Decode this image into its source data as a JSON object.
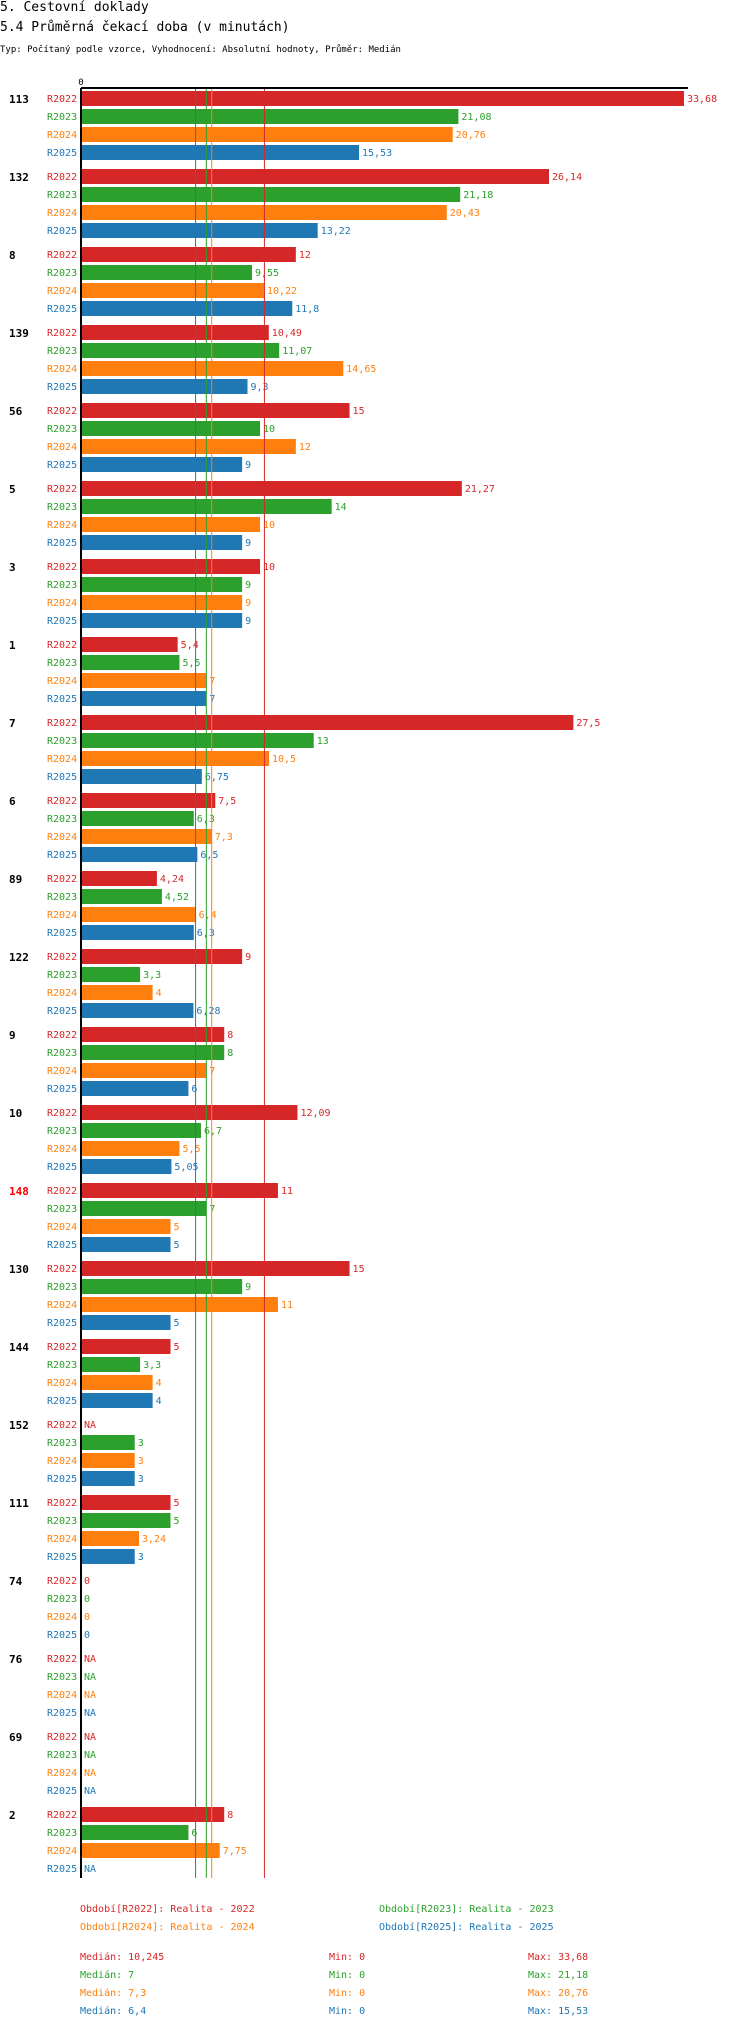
{
  "header": {
    "title": "5. Cestovní doklady",
    "subtitle": "5.4 Průměrná čekací doba (v minutách)",
    "type_line": "Typ: Počítaný podle vzorce, Vyhodnocení: Absolutní hodnoty, Průměr: Medián"
  },
  "colors": {
    "R2022": "#d62728",
    "R2023": "#2ca02c",
    "R2024": "#ff7f0e",
    "R2025": "#1f77b4",
    "highlight_category": "#ff0000"
  },
  "chart_data": {
    "type": "bar",
    "orientation": "horizontal",
    "x_axis_tick": "0",
    "xlim": [
      0,
      33.68
    ],
    "series_names": [
      "R2022",
      "R2023",
      "R2024",
      "R2025"
    ],
    "categories": [
      {
        "label": "113",
        "highlight": false,
        "values": [
          33.68,
          21.08,
          20.76,
          15.53
        ],
        "labels": [
          "33,68",
          "21,08",
          "20,76",
          "15,53"
        ]
      },
      {
        "label": "132",
        "highlight": false,
        "values": [
          26.14,
          21.18,
          20.43,
          13.22
        ],
        "labels": [
          "26,14",
          "21,18",
          "20,43",
          "13,22"
        ]
      },
      {
        "label": "8",
        "highlight": false,
        "values": [
          12,
          9.55,
          10.22,
          11.8
        ],
        "labels": [
          "12",
          "9,55",
          "10,22",
          "11,8"
        ]
      },
      {
        "label": "139",
        "highlight": false,
        "values": [
          10.49,
          11.07,
          14.65,
          9.3
        ],
        "labels": [
          "10,49",
          "11,07",
          "14,65",
          "9,3"
        ]
      },
      {
        "label": "56",
        "highlight": false,
        "values": [
          15,
          10,
          12,
          9
        ],
        "labels": [
          "15",
          "10",
          "12",
          "9"
        ]
      },
      {
        "label": "5",
        "highlight": false,
        "values": [
          21.27,
          14,
          10,
          9
        ],
        "labels": [
          "21,27",
          "14",
          "10",
          "9"
        ]
      },
      {
        "label": "3",
        "highlight": false,
        "values": [
          10,
          9,
          9,
          9
        ],
        "labels": [
          "10",
          "9",
          "9",
          "9"
        ]
      },
      {
        "label": "1",
        "highlight": false,
        "values": [
          5.4,
          5.5,
          7,
          7
        ],
        "labels": [
          "5,4",
          "5,5",
          "7",
          "7"
        ]
      },
      {
        "label": "7",
        "highlight": false,
        "values": [
          27.5,
          13,
          10.5,
          6.75
        ],
        "labels": [
          "27,5",
          "13",
          "10,5",
          "6,75"
        ]
      },
      {
        "label": "6",
        "highlight": false,
        "values": [
          7.5,
          6.3,
          7.3,
          6.5
        ],
        "labels": [
          "7,5",
          "6,3",
          "7,3",
          "6,5"
        ]
      },
      {
        "label": "89",
        "highlight": false,
        "values": [
          4.24,
          4.52,
          6.4,
          6.3
        ],
        "labels": [
          "4,24",
          "4,52",
          "6,4",
          "6,3"
        ]
      },
      {
        "label": "122",
        "highlight": false,
        "values": [
          9,
          3.3,
          4,
          6.28
        ],
        "labels": [
          "9",
          "3,3",
          "4",
          "6,28"
        ]
      },
      {
        "label": "9",
        "highlight": false,
        "values": [
          8,
          8,
          7,
          6
        ],
        "labels": [
          "8",
          "8",
          "7",
          "6"
        ]
      },
      {
        "label": "10",
        "highlight": false,
        "values": [
          12.09,
          6.7,
          5.5,
          5.05
        ],
        "labels": [
          "12,09",
          "6,7",
          "5,5",
          "5,05"
        ]
      },
      {
        "label": "148",
        "highlight": true,
        "values": [
          11,
          7,
          5,
          5
        ],
        "labels": [
          "11",
          "7",
          "5",
          "5"
        ]
      },
      {
        "label": "130",
        "highlight": false,
        "values": [
          15,
          9,
          11,
          5
        ],
        "labels": [
          "15",
          "9",
          "11",
          "5"
        ]
      },
      {
        "label": "144",
        "highlight": false,
        "values": [
          5,
          3.3,
          4,
          4
        ],
        "labels": [
          "5",
          "3,3",
          "4",
          "4"
        ]
      },
      {
        "label": "152",
        "highlight": false,
        "values": [
          null,
          3,
          3,
          3
        ],
        "labels": [
          "NA",
          "3",
          "3",
          "3"
        ]
      },
      {
        "label": "111",
        "highlight": false,
        "values": [
          5,
          5,
          3.24,
          3
        ],
        "labels": [
          "5",
          "5",
          "3,24",
          "3"
        ]
      },
      {
        "label": "74",
        "highlight": false,
        "values": [
          0,
          0,
          0,
          0
        ],
        "labels": [
          "0",
          "0",
          "0",
          "0"
        ]
      },
      {
        "label": "76",
        "highlight": false,
        "values": [
          null,
          null,
          null,
          null
        ],
        "labels": [
          "NA",
          "NA",
          "NA",
          "NA"
        ]
      },
      {
        "label": "69",
        "highlight": false,
        "values": [
          null,
          null,
          null,
          null
        ],
        "labels": [
          "NA",
          "NA",
          "NA",
          "NA"
        ]
      },
      {
        "label": "2",
        "highlight": false,
        "values": [
          8,
          6,
          7.75,
          null
        ],
        "labels": [
          "8",
          "6",
          "7,75",
          "NA"
        ]
      }
    ],
    "median_lines": [
      {
        "series": "R2022",
        "value": 10.245
      },
      {
        "series": "R2023",
        "value": 7
      },
      {
        "series": "R2024",
        "value": 7.3
      },
      {
        "series": "R2025",
        "value": 6.4
      }
    ]
  },
  "legend": {
    "periods": [
      {
        "series": "R2022",
        "text": "Období[R2022]: Realita - 2022"
      },
      {
        "series": "R2023",
        "text": "Období[R2023]: Realita - 2023"
      },
      {
        "series": "R2024",
        "text": "Období[R2024]: Realita - 2024"
      },
      {
        "series": "R2025",
        "text": "Období[R2025]: Realita - 2025"
      }
    ],
    "stats": [
      {
        "series": "R2022",
        "median": "Medián: 10,245",
        "min": "Min: 0",
        "max": "Max: 33,68"
      },
      {
        "series": "R2023",
        "median": "Medián: 7",
        "min": "Min: 0",
        "max": "Max: 21,18"
      },
      {
        "series": "R2024",
        "median": "Medián: 7,3",
        "min": "Min: 0",
        "max": "Max: 20,76"
      },
      {
        "series": "R2025",
        "median": "Medián: 6,4",
        "min": "Min: 0",
        "max": "Max: 15,53"
      }
    ]
  }
}
